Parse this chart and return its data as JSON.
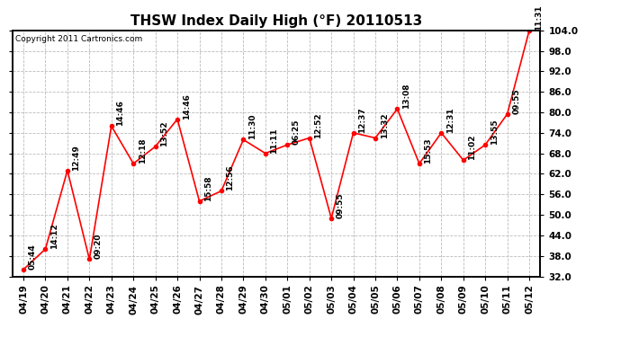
{
  "title": "THSW Index Daily High (°F) 20110513",
  "copyright": "Copyright 2011 Cartronics.com",
  "dates": [
    "04/19",
    "04/20",
    "04/21",
    "04/22",
    "04/23",
    "04/24",
    "04/25",
    "04/26",
    "04/27",
    "04/28",
    "04/29",
    "04/30",
    "05/01",
    "05/02",
    "05/03",
    "05/04",
    "05/05",
    "05/06",
    "05/07",
    "05/08",
    "05/09",
    "05/10",
    "05/11",
    "05/12"
  ],
  "values": [
    34.0,
    40.0,
    63.0,
    37.0,
    76.0,
    65.0,
    70.0,
    78.0,
    54.0,
    57.0,
    72.0,
    68.0,
    70.5,
    72.5,
    49.0,
    74.0,
    72.5,
    81.0,
    65.0,
    74.0,
    66.0,
    70.5,
    79.5,
    104.0
  ],
  "labels": [
    "05:44",
    "14:12",
    "12:49",
    "09:20",
    "14:46",
    "12:18",
    "13:52",
    "14:46",
    "15:58",
    "12:56",
    "11:30",
    "11:11",
    "06:25",
    "12:52",
    "09:55",
    "12:37",
    "13:32",
    "13:08",
    "15:53",
    "12:31",
    "11:02",
    "13:55",
    "09:55",
    "11:31"
  ],
  "ylim_min": 32.0,
  "ylim_max": 104.0,
  "yticks": [
    32.0,
    38.0,
    44.0,
    50.0,
    56.0,
    62.0,
    68.0,
    74.0,
    80.0,
    86.0,
    92.0,
    98.0,
    104.0
  ],
  "line_color": "red",
  "marker_size": 3,
  "bg_color": "white",
  "grid_color": "#bbbbbb",
  "title_fontsize": 11,
  "label_fontsize": 6.5,
  "tick_fontsize": 7.5,
  "copyright_fontsize": 6.5
}
